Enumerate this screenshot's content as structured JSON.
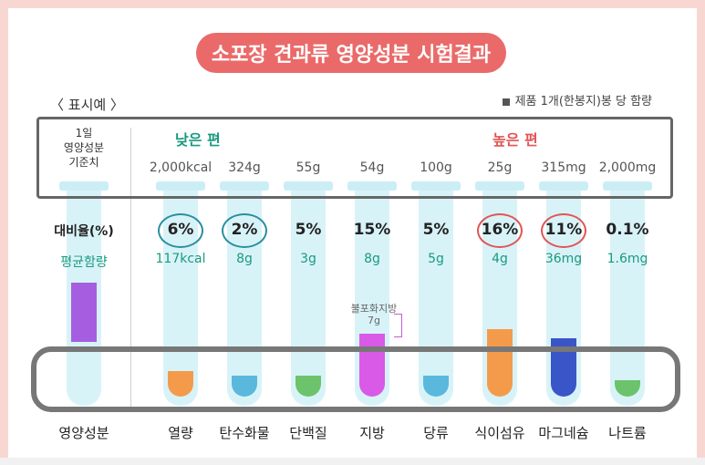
{
  "title": "소포장 견과류 영양성분 시험결과",
  "example_label": "〈 표시예 〉",
  "note": "제품 1개(한봉지)봉 당 함량",
  "std_label": [
    "1일",
    "영양성분",
    "기준치"
  ],
  "ratio_label": "대비율(%)",
  "avg_label": "평균함량",
  "left_name": "영양성분",
  "low_tag": "낮은 편",
  "high_tag": "높은 편",
  "fat_note": [
    "불포화지방",
    "7g"
  ],
  "colors": {
    "title_bg": "#ea6a6a",
    "tube": "#d8f3f8",
    "low": "#2a8fa0",
    "high": "#e05555"
  },
  "nutrients": [
    {
      "name": "열량",
      "std": "2,000kcal",
      "pct": "6%",
      "amount": "117kcal",
      "fill_color": "#f49b4b",
      "fill_level": 0.12
    },
    {
      "name": "탄수화물",
      "std": "324g",
      "pct": "2%",
      "amount": "8g",
      "fill_color": "#5ab8dd",
      "fill_level": 0.1
    },
    {
      "name": "단백질",
      "std": "55g",
      "pct": "5%",
      "amount": "3g",
      "fill_color": "#6cc36b",
      "fill_level": 0.1
    },
    {
      "name": "지방",
      "std": "54g",
      "pct": "15%",
      "amount": "8g",
      "fill_color": "#d85ae6",
      "fill_level": 0.3
    },
    {
      "name": "당류",
      "std": "100g",
      "pct": "5%",
      "amount": "5g",
      "fill_color": "#5ab8dd",
      "fill_level": 0.1
    },
    {
      "name": "식이섬유",
      "std": "25g",
      "pct": "16%",
      "amount": "4g",
      "fill_color": "#f49b4b",
      "fill_level": 0.32
    },
    {
      "name": "마그네슘",
      "std": "315mg",
      "pct": "11%",
      "amount": "36mg",
      "fill_color": "#3a55c8",
      "fill_level": 0.28
    },
    {
      "name": "나트륨",
      "std": "2,000mg",
      "pct": "0.1%",
      "amount": "1.6mg",
      "fill_color": "#6cc36b",
      "fill_level": 0.08
    }
  ]
}
